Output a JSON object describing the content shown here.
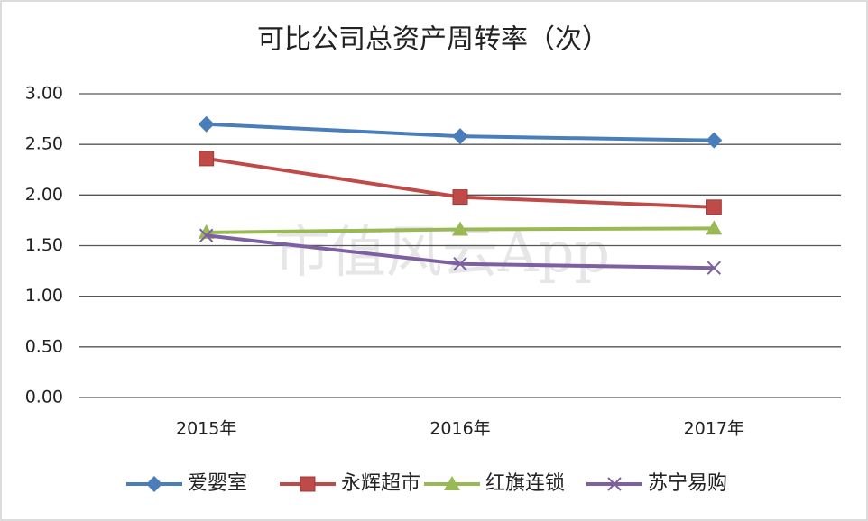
{
  "chart_data": {
    "type": "line",
    "title": "可比公司总资产周转率（次）",
    "watermark": "市值风云App",
    "categories": [
      "2015年",
      "2016年",
      "2017年"
    ],
    "series": [
      {
        "name": "爱婴室",
        "color": "#4a7ebb",
        "marker": "diamond",
        "values": [
          2.7,
          2.58,
          2.54
        ]
      },
      {
        "name": "永辉超市",
        "color": "#be4b48",
        "marker": "square",
        "values": [
          2.36,
          1.98,
          1.88
        ]
      },
      {
        "name": "红旗连锁",
        "color": "#98b954",
        "marker": "triangle",
        "values": [
          1.63,
          1.66,
          1.67
        ]
      },
      {
        "name": "苏宁易购",
        "color": "#7d60a0",
        "marker": "x",
        "values": [
          1.6,
          1.32,
          1.28
        ]
      }
    ],
    "ylim": [
      0,
      3
    ],
    "yticks": [
      {
        "value": 0,
        "label": "0.00"
      },
      {
        "value": 0.5,
        "label": "0.50"
      },
      {
        "value": 1,
        "label": "1.00"
      },
      {
        "value": 1.5,
        "label": "1.50"
      },
      {
        "value": 2,
        "label": "2.00"
      },
      {
        "value": 2.5,
        "label": "2.50"
      },
      {
        "value": 3,
        "label": "3.00"
      }
    ],
    "grid": true,
    "legend": "bottom"
  }
}
